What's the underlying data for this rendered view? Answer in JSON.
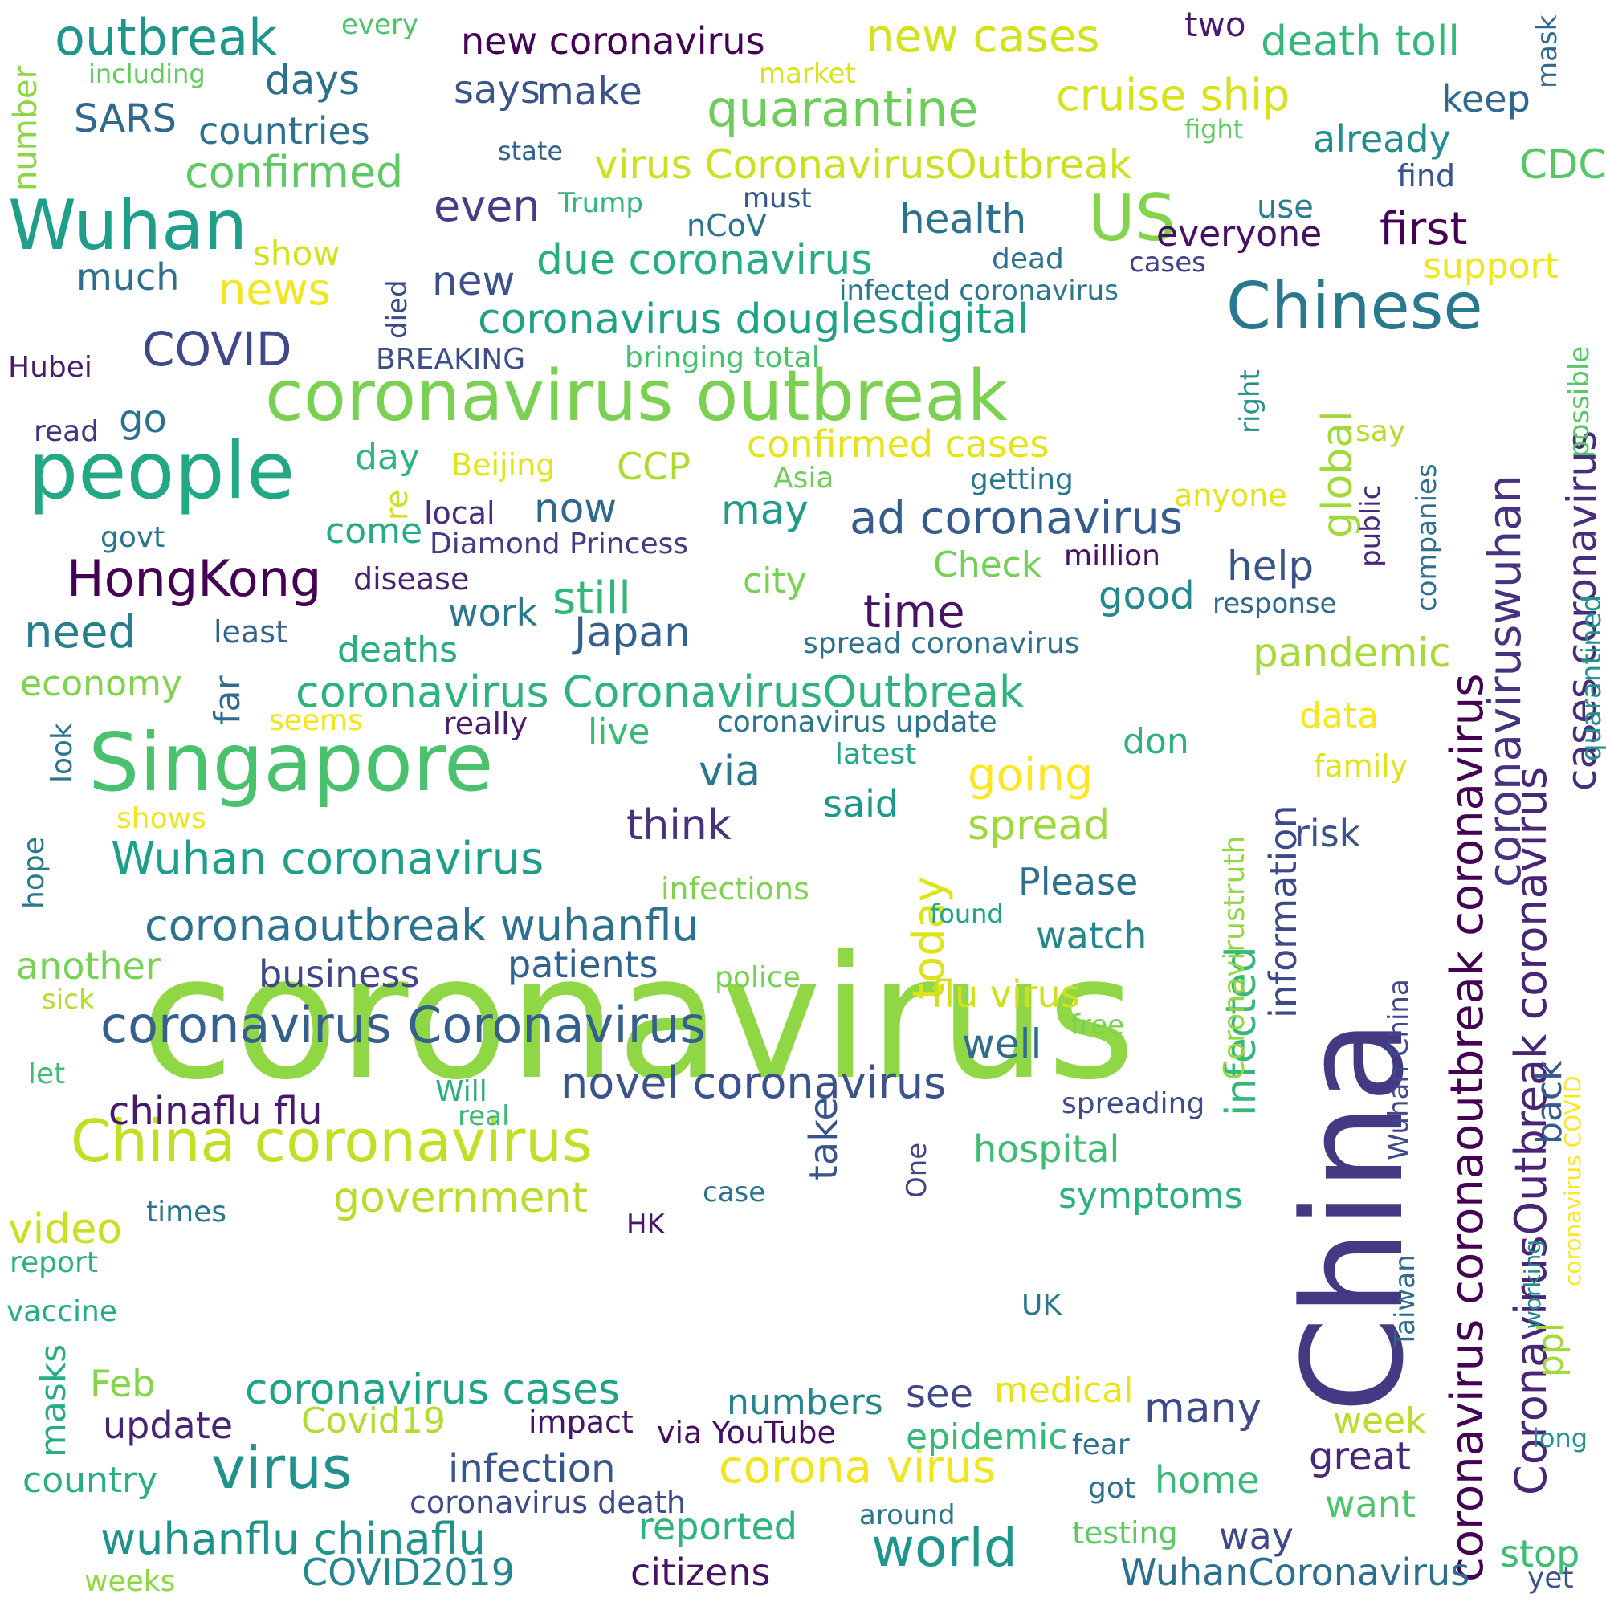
{
  "words": [
    {
      "text": "coronavirus",
      "color": "#8fd744"
    },
    {
      "text": "China",
      "color": "#443a83"
    },
    {
      "text": "Singapore",
      "color": "#4ac16d"
    },
    {
      "text": "people",
      "color": "#22a884"
    },
    {
      "text": "coronavirus outbreak",
      "color": "#7ad151"
    },
    {
      "text": "Wuhan",
      "color": "#1f9e89"
    },
    {
      "text": "Chinese",
      "color": "#2a788e"
    },
    {
      "text": "US",
      "color": "#84d44b"
    },
    {
      "text": "China coronavirus",
      "color": "#c2df23"
    },
    {
      "text": "virus",
      "color": "#21918c"
    },
    {
      "text": "coronavirus Coronavirus",
      "color": "#355f8d"
    },
    {
      "text": "outbreak",
      "color": "#1f968b"
    },
    {
      "text": "coronavirus coronaoutbreak coronavirus",
      "color": "#440154"
    },
    {
      "text": "CoronavirusOutbreak coronavirus",
      "color": "#482576"
    },
    {
      "text": "coronavirus CoronavirusOutbreak",
      "color": "#2eb37c"
    },
    {
      "text": "HongKong",
      "color": "#440154"
    },
    {
      "text": "quarantine",
      "color": "#6ccd5a"
    },
    {
      "text": "new cases",
      "color": "#d2e21b"
    },
    {
      "text": "Wuhan coronavirus",
      "color": "#1f9e89"
    },
    {
      "text": "coronaoutbreak wuhanflu",
      "color": "#2c728e"
    },
    {
      "text": "world",
      "color": "#1f968b"
    },
    {
      "text": "coronavirus douglesdigital",
      "color": "#1fa187"
    },
    {
      "text": "ad coronavirus",
      "color": "#365c8d"
    },
    {
      "text": "coronaviruswuhan",
      "color": "#46327e"
    },
    {
      "text": "new coronavirus",
      "color": "#440154"
    },
    {
      "text": "novel coronavirus",
      "color": "#3b528b"
    },
    {
      "text": "corona virus",
      "color": "#f1e51d"
    },
    {
      "text": "cases coronavirus",
      "color": "#472d7b"
    },
    {
      "text": "wuhanflu chinaflu",
      "color": "#21918c"
    },
    {
      "text": "virus CoronavirusOutbreak",
      "color": "#cae11f"
    },
    {
      "text": "cruise ship",
      "color": "#d8e219"
    },
    {
      "text": "coronavirus cases",
      "color": "#20a386"
    },
    {
      "text": "death toll",
      "color": "#35b779"
    },
    {
      "text": "confirmed",
      "color": "#5ec962"
    },
    {
      "text": "COVID",
      "color": "#3e4989"
    },
    {
      "text": "government",
      "color": "#b5de2b"
    },
    {
      "text": "due coronavirus",
      "color": "#27ad81"
    },
    {
      "text": "days",
      "color": "#2d708e"
    },
    {
      "text": "need",
      "color": "#277f8e"
    },
    {
      "text": "first",
      "color": "#440154"
    },
    {
      "text": "time",
      "color": "#471365"
    },
    {
      "text": "still",
      "color": "#32b67a"
    },
    {
      "text": "confirmed cases",
      "color": "#e5e419"
    },
    {
      "text": "chinaflu flu",
      "color": "#48186a"
    },
    {
      "text": "going",
      "color": "#fde725"
    },
    {
      "text": "spread",
      "color": "#9bd93c"
    },
    {
      "text": "infected",
      "color": "#37b878"
    },
    {
      "text": "pandemic",
      "color": "#a5db36"
    },
    {
      "text": "countries",
      "color": "#2c728e"
    },
    {
      "text": "think",
      "color": "#46327e"
    },
    {
      "text": "video",
      "color": "#c8e020"
    },
    {
      "text": "information",
      "color": "#3e4989"
    },
    {
      "text": "news",
      "color": "#f4e61e"
    },
    {
      "text": "health",
      "color": "#2c728e"
    },
    {
      "text": "SARS",
      "color": "#31688e"
    },
    {
      "text": "even",
      "color": "#433e85"
    },
    {
      "text": "today",
      "color": "#dde318"
    },
    {
      "text": "patients",
      "color": "#33638d"
    },
    {
      "text": "business",
      "color": "#3f4788"
    },
    {
      "text": "update",
      "color": "#482475"
    },
    {
      "text": "infection",
      "color": "#39568c"
    },
    {
      "text": "WuhanCoronavirus",
      "color": "#2d708e"
    },
    {
      "text": "COVID2019",
      "color": "#24868e"
    },
    {
      "text": "citizens",
      "color": "#471164"
    },
    {
      "text": "reported",
      "color": "#2fb47c"
    },
    {
      "text": "Japan",
      "color": "#355f8d"
    },
    {
      "text": "many",
      "color": "#3e4a89"
    },
    {
      "text": "take",
      "color": "#3b528b"
    },
    {
      "text": "global",
      "color": "#9fda3a"
    },
    {
      "text": "says",
      "color": "#39558c"
    },
    {
      "text": "make",
      "color": "#3b528b"
    },
    {
      "text": "keep",
      "color": "#31688e"
    },
    {
      "text": "already",
      "color": "#228d8d"
    },
    {
      "text": "CDC",
      "color": "#56c667"
    },
    {
      "text": "everyone",
      "color": "#471063"
    },
    {
      "text": "much",
      "color": "#2e6e8e"
    },
    {
      "text": "new",
      "color": "#3b528b"
    },
    {
      "text": "go",
      "color": "#2d708e"
    },
    {
      "text": "now",
      "color": "#31688e"
    },
    {
      "text": "may",
      "color": "#1e9c89"
    },
    {
      "text": "help",
      "color": "#3a538b"
    },
    {
      "text": "good",
      "color": "#23898e"
    },
    {
      "text": "work",
      "color": "#2a778e"
    },
    {
      "text": "via",
      "color": "#2a778e"
    },
    {
      "text": "said",
      "color": "#1f988b"
    },
    {
      "text": "watch",
      "color": "#24878e"
    },
    {
      "text": "Please",
      "color": "#2d708e"
    },
    {
      "text": "well",
      "color": "#2f6c8e"
    },
    {
      "text": "flu virus",
      "color": "#d0e11c"
    },
    {
      "text": "hospital",
      "color": "#3fbc73"
    },
    {
      "text": "symptoms",
      "color": "#2ab07f"
    },
    {
      "text": "epidemic",
      "color": "#37b878"
    },
    {
      "text": "medical",
      "color": "#e7e419"
    },
    {
      "text": "see",
      "color": "#3f4889"
    },
    {
      "text": "numbers",
      "color": "#25858e"
    },
    {
      "text": "great",
      "color": "#482878"
    },
    {
      "text": "want",
      "color": "#50c46a"
    },
    {
      "text": "stop",
      "color": "#3dbc74"
    },
    {
      "text": "home",
      "color": "#3aba76"
    },
    {
      "text": "way",
      "color": "#3f4889"
    },
    {
      "text": "risk",
      "color": "#3b528b"
    },
    {
      "text": "back",
      "color": "#38598c"
    },
    {
      "text": "ppl",
      "color": "#a2da37"
    },
    {
      "text": "week",
      "color": "#b8de29"
    },
    {
      "text": "another",
      "color": "#77d153"
    },
    {
      "text": "economy",
      "color": "#81d34d"
    },
    {
      "text": "country",
      "color": "#29af7f"
    },
    {
      "text": "masks",
      "color": "#26ad81"
    },
    {
      "text": "Feb",
      "color": "#86d549"
    },
    {
      "text": "Covid19",
      "color": "#b0dd2f"
    },
    {
      "text": "day",
      "color": "#2fb47c"
    },
    {
      "text": "come",
      "color": "#25ac82"
    },
    {
      "text": "deaths",
      "color": "#29af7f"
    },
    {
      "text": "live",
      "color": "#3aba76"
    },
    {
      "text": "city",
      "color": "#7ad151"
    },
    {
      "text": "Check",
      "color": "#73d056"
    },
    {
      "text": "CCP",
      "color": "#addc30"
    },
    {
      "text": "data",
      "color": "#f8e621"
    },
    {
      "text": "don",
      "color": "#2db27d"
    },
    {
      "text": "far",
      "color": "#2e6d8e"
    },
    {
      "text": "number",
      "color": "#8bd646"
    },
    {
      "text": "show",
      "color": "#d2e21b"
    },
    {
      "text": "Hubei",
      "color": "#481d6f"
    },
    {
      "text": "BREAKING",
      "color": "#3d4d8a"
    },
    {
      "text": "every",
      "color": "#4ec36b"
    },
    {
      "text": "including",
      "color": "#63cb5f"
    },
    {
      "text": "state",
      "color": "#33638d"
    },
    {
      "text": "market",
      "color": "#dae319"
    },
    {
      "text": "fight",
      "color": "#5ec962"
    },
    {
      "text": "two",
      "color": "#481a6c"
    },
    {
      "text": "mask",
      "color": "#31688e"
    },
    {
      "text": "find",
      "color": "#39568c"
    },
    {
      "text": "Trump",
      "color": "#34b679"
    },
    {
      "text": "must",
      "color": "#38588c"
    },
    {
      "text": "nCoV",
      "color": "#2b748e"
    },
    {
      "text": "use",
      "color": "#287c8e"
    },
    {
      "text": "dead",
      "color": "#2d718e"
    },
    {
      "text": "cases",
      "color": "#414287"
    },
    {
      "text": "support",
      "color": "#f1e51d"
    },
    {
      "text": "infected coronavirus",
      "color": "#2a788e"
    },
    {
      "text": "died",
      "color": "#3e4989"
    },
    {
      "text": "bringing total",
      "color": "#48c16e"
    },
    {
      "text": "read",
      "color": "#46337f"
    },
    {
      "text": "Beijing",
      "color": "#e2e418"
    },
    {
      "text": "Asia",
      "color": "#6ece58"
    },
    {
      "text": "getting",
      "color": "#2a768e"
    },
    {
      "text": "anyone",
      "color": "#e5e419"
    },
    {
      "text": "say",
      "color": "#b2dd2d"
    },
    {
      "text": "right",
      "color": "#20928c"
    },
    {
      "text": "possible",
      "color": "#58c765"
    },
    {
      "text": "public",
      "color": "#482979"
    },
    {
      "text": "companies",
      "color": "#2e6f8e"
    },
    {
      "text": "quarantined",
      "color": "#20938c"
    },
    {
      "text": "local",
      "color": "#46307e"
    },
    {
      "text": "govt",
      "color": "#2b748e"
    },
    {
      "text": "Diamond Princess",
      "color": "#443b84"
    },
    {
      "text": "million",
      "color": "#471164"
    },
    {
      "text": "response",
      "color": "#30698e"
    },
    {
      "text": "re",
      "color": "#cde11d"
    },
    {
      "text": "disease",
      "color": "#482173"
    },
    {
      "text": "least",
      "color": "#33638d"
    },
    {
      "text": "spread coronavirus",
      "color": "#2c718e"
    },
    {
      "text": "seems",
      "color": "#f1e51d"
    },
    {
      "text": "really",
      "color": "#481c6e"
    },
    {
      "text": "coronavirus update",
      "color": "#2b758e"
    },
    {
      "text": "latest",
      "color": "#22a884"
    },
    {
      "text": "family",
      "color": "#dfe318"
    },
    {
      "text": "look",
      "color": "#2a778e"
    },
    {
      "text": "shows",
      "color": "#f1e51d"
    },
    {
      "text": "infections",
      "color": "#7fd34e"
    },
    {
      "text": "found",
      "color": "#20a486"
    },
    {
      "text": "Coronavirustruth",
      "color": "#93d741"
    },
    {
      "text": "Wuhan China",
      "color": "#3e4a89"
    },
    {
      "text": "hope",
      "color": "#2a788e"
    },
    {
      "text": "police",
      "color": "#7ad151"
    },
    {
      "text": "sick",
      "color": "#b5de2b"
    },
    {
      "text": "free",
      "color": "#77d153"
    },
    {
      "text": "let",
      "color": "#3dbc74"
    },
    {
      "text": "Will",
      "color": "#29af7f"
    },
    {
      "text": "real",
      "color": "#3fbc73"
    },
    {
      "text": "spreading",
      "color": "#3e4a89"
    },
    {
      "text": "One",
      "color": "#414487"
    },
    {
      "text": "case",
      "color": "#2c728e"
    },
    {
      "text": "times",
      "color": "#2a768e"
    },
    {
      "text": "HK",
      "color": "#481668"
    },
    {
      "text": "report",
      "color": "#2db27d"
    },
    {
      "text": "vaccine",
      "color": "#26ad81"
    },
    {
      "text": "UK",
      "color": "#2a788e"
    },
    {
      "text": "Taiwan",
      "color": "#2f6b8e"
    },
    {
      "text": "working",
      "color": "#23888e"
    },
    {
      "text": "coronavirus COVID",
      "color": "#fde725"
    },
    {
      "text": "long",
      "color": "#21918c"
    },
    {
      "text": "impact",
      "color": "#471365"
    },
    {
      "text": "via YouTube",
      "color": "#470e61"
    },
    {
      "text": "fear",
      "color": "#2c728e"
    },
    {
      "text": "got",
      "color": "#2e6e8e"
    },
    {
      "text": "coronavirus death",
      "color": "#3e4a89"
    },
    {
      "text": "around",
      "color": "#2a778e"
    },
    {
      "text": "testing",
      "color": "#5ec962"
    },
    {
      "text": "weeks",
      "color": "#8fd744"
    },
    {
      "text": "yet",
      "color": "#3b528b"
    }
  ]
}
